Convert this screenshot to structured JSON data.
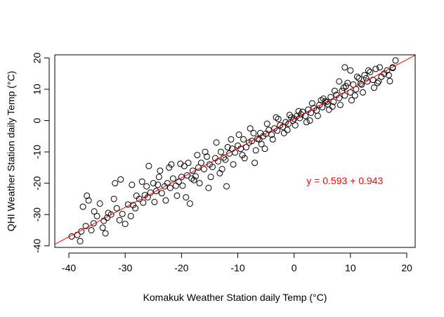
{
  "chart_data": {
    "type": "scatter",
    "title": "",
    "xlabel": "Komakuk Weather Station daily Temp (°C)",
    "ylabel": "QHI Weather Station daily Temp (°C)",
    "xlim": [
      -42.5,
      21.5
    ],
    "ylim": [
      -40.5,
      21.0
    ],
    "x_ticks": [
      -40,
      -30,
      -20,
      -10,
      0,
      10,
      20
    ],
    "y_ticks": [
      -40,
      -30,
      -20,
      -10,
      0,
      10,
      20
    ],
    "x_tick_labels": [
      "-40",
      "-30",
      "-20",
      "-10",
      "0",
      "10",
      "20"
    ],
    "y_tick_labels": [
      "-40",
      "-30",
      "-20",
      "-10",
      "0",
      "10",
      "20"
    ],
    "grid": false,
    "point_color": "#000000",
    "marker": "open-circle",
    "regression": {
      "intercept": 0.593,
      "slope": 0.943,
      "color": "#ff0000",
      "label": "y = 0.593 + 0.943",
      "label_position": [
        2.2,
        -20.3
      ]
    },
    "points": [
      [
        -39.5,
        -37.0
      ],
      [
        -38.5,
        -36.5
      ],
      [
        -37.8,
        -35.4
      ],
      [
        -37.0,
        -33.7
      ],
      [
        -36.5,
        -25.5
      ],
      [
        -35.6,
        -32.8
      ],
      [
        -35.0,
        -30.5
      ],
      [
        -34.5,
        -26.5
      ],
      [
        -33.8,
        -32.0
      ],
      [
        -33.0,
        -29.5
      ],
      [
        -32.5,
        -30.0
      ],
      [
        -31.8,
        -20.0
      ],
      [
        -31.5,
        -28.0
      ],
      [
        -30.5,
        -29.8
      ],
      [
        -30.0,
        -33.0
      ],
      [
        -29.5,
        -26.8
      ],
      [
        -28.6,
        -27.0
      ],
      [
        -28.0,
        -24.0
      ],
      [
        -27.5,
        -25.0
      ],
      [
        -26.8,
        -26.2
      ],
      [
        -26.0,
        -24.5
      ],
      [
        -25.5,
        -23.0
      ],
      [
        -25.0,
        -20.0
      ],
      [
        -24.5,
        -22.5
      ],
      [
        -24.0,
        -18.0
      ],
      [
        -23.5,
        -23.2
      ],
      [
        -23.0,
        -21.0
      ],
      [
        -22.5,
        -20.0
      ],
      [
        -22.0,
        -21.5
      ],
      [
        -21.5,
        -18.5
      ],
      [
        -21.0,
        -20.8
      ],
      [
        -20.5,
        -19.5
      ],
      [
        -20.0,
        -18.0
      ],
      [
        -19.5,
        -14.5
      ],
      [
        -19.0,
        -17.5
      ],
      [
        -18.5,
        -26.5
      ],
      [
        -18.0,
        -16.0
      ],
      [
        -17.5,
        -17.8
      ],
      [
        -17.0,
        -15.0
      ],
      [
        -16.5,
        -13.5
      ],
      [
        -16.0,
        -15.5
      ],
      [
        -15.5,
        -11.5
      ],
      [
        -15.0,
        -14.0
      ],
      [
        -14.5,
        -14.8
      ],
      [
        -14.0,
        -12.0
      ],
      [
        -13.5,
        -13.0
      ],
      [
        -13.0,
        -10.0
      ],
      [
        -12.5,
        -11.8
      ],
      [
        -12.0,
        -21.0
      ],
      [
        -11.5,
        -10.5
      ],
      [
        -11.0,
        -9.0
      ],
      [
        -10.5,
        -10.2
      ],
      [
        -10.0,
        -8.0
      ],
      [
        -9.5,
        -9.0
      ],
      [
        -9.0,
        -6.0
      ],
      [
        -8.5,
        -8.5
      ],
      [
        -8.0,
        -7.0
      ],
      [
        -7.5,
        -6.5
      ],
      [
        -7.0,
        -13.5
      ],
      [
        -6.5,
        -5.8
      ],
      [
        -6.0,
        -4.0
      ],
      [
        -5.5,
        -5.0
      ],
      [
        -5.0,
        -4.2
      ],
      [
        -4.5,
        -3.0
      ],
      [
        -4.0,
        -4.5
      ],
      [
        -3.5,
        -2.5
      ],
      [
        -3.0,
        -3.2
      ],
      [
        -2.5,
        -1.5
      ],
      [
        -2.0,
        -2.0
      ],
      [
        -1.5,
        -0.5
      ],
      [
        -1.0,
        -1.0
      ],
      [
        -0.5,
        1.0
      ],
      [
        0.0,
        0.6
      ],
      [
        0.5,
        1.5
      ],
      [
        1.0,
        0.8
      ],
      [
        1.5,
        2.8
      ],
      [
        2.0,
        1.5
      ],
      [
        2.5,
        3.5
      ],
      [
        3.0,
        2.5
      ],
      [
        3.5,
        4.0
      ],
      [
        4.0,
        3.2
      ],
      [
        4.5,
        5.0
      ],
      [
        5.0,
        4.3
      ],
      [
        5.5,
        6.2
      ],
      [
        6.0,
        5.2
      ],
      [
        6.5,
        7.5
      ],
      [
        7.0,
        6.0
      ],
      [
        7.5,
        8.2
      ],
      [
        8.0,
        7.2
      ],
      [
        8.5,
        9.5
      ],
      [
        9.0,
        8.0
      ],
      [
        9.5,
        12.0
      ],
      [
        10.0,
        9.0
      ],
      [
        10.5,
        11.5
      ],
      [
        11.0,
        10.0
      ],
      [
        11.5,
        13.5
      ],
      [
        12.0,
        11.5
      ],
      [
        12.5,
        14.5
      ],
      [
        13.0,
        12.5
      ],
      [
        13.5,
        15.5
      ],
      [
        14.0,
        13.0
      ],
      [
        14.5,
        16.5
      ],
      [
        15.0,
        12.5
      ],
      [
        15.5,
        14.0
      ],
      [
        16.0,
        15.0
      ],
      [
        16.5,
        16.0
      ],
      [
        17.0,
        12.6
      ],
      [
        17.5,
        16.8
      ],
      [
        18.0,
        19.2
      ],
      [
        -36.0,
        -35.0
      ],
      [
        -34.0,
        -34.2
      ],
      [
        -32.0,
        -25.0
      ],
      [
        -29.0,
        -30.5
      ],
      [
        -27.0,
        -19.5
      ],
      [
        -26.5,
        -23.8
      ],
      [
        -25.8,
        -14.5
      ],
      [
        -24.8,
        -26.0
      ],
      [
        -23.8,
        -16.0
      ],
      [
        -22.8,
        -25.5
      ],
      [
        -21.8,
        -14.0
      ],
      [
        -20.8,
        -24.0
      ],
      [
        -19.8,
        -20.8
      ],
      [
        -18.8,
        -13.5
      ],
      [
        -17.8,
        -19.0
      ],
      [
        -16.8,
        -20.0
      ],
      [
        -15.8,
        -10.0
      ],
      [
        -14.8,
        -18.0
      ],
      [
        -13.8,
        -7.0
      ],
      [
        -12.8,
        -15.5
      ],
      [
        -11.8,
        -8.5
      ],
      [
        -10.8,
        -14.0
      ],
      [
        -9.8,
        -4.5
      ],
      [
        -8.8,
        -12.0
      ],
      [
        -7.8,
        -2.5
      ],
      [
        -6.8,
        -9.5
      ],
      [
        -5.8,
        -7.5
      ],
      [
        -4.8,
        -1.0
      ],
      [
        -3.8,
        -6.0
      ],
      [
        -2.8,
        0.5
      ],
      [
        -1.8,
        -4.0
      ],
      [
        -0.8,
        1.8
      ],
      [
        0.2,
        -1.5
      ],
      [
        1.2,
        2.0
      ],
      [
        2.2,
        -0.5
      ],
      [
        3.2,
        5.5
      ],
      [
        4.2,
        1.5
      ],
      [
        5.2,
        7.0
      ],
      [
        6.2,
        3.5
      ],
      [
        7.2,
        9.5
      ],
      [
        8.2,
        5.0
      ],
      [
        9.2,
        11.0
      ],
      [
        10.2,
        6.5
      ],
      [
        11.2,
        14.0
      ],
      [
        12.2,
        9.0
      ],
      [
        13.2,
        16.0
      ],
      [
        14.2,
        10.5
      ],
      [
        15.2,
        17.0
      ],
      [
        9.0,
        17.0
      ],
      [
        10.0,
        16.0
      ],
      [
        8.0,
        12.5
      ],
      [
        -30.8,
        -18.8
      ],
      [
        -28.8,
        -20.5
      ],
      [
        -26.2,
        -21.0
      ],
      [
        -22.2,
        -15.0
      ],
      [
        -20.2,
        -13.8
      ],
      [
        -19.2,
        -24.5
      ],
      [
        -17.2,
        -11.0
      ],
      [
        -15.2,
        -21.5
      ],
      [
        -13.2,
        -16.8
      ],
      [
        -11.2,
        -6.0
      ],
      [
        -9.2,
        -11.0
      ],
      [
        -7.2,
        -4.0
      ],
      [
        -5.2,
        -9.0
      ],
      [
        -3.2,
        1.0
      ],
      [
        -1.2,
        -3.0
      ],
      [
        0.8,
        3.0
      ],
      [
        2.8,
        0.0
      ],
      [
        4.8,
        6.5
      ],
      [
        6.8,
        4.5
      ],
      [
        8.8,
        10.5
      ],
      [
        10.8,
        8.0
      ],
      [
        12.8,
        13.5
      ],
      [
        14.8,
        12.0
      ],
      [
        16.8,
        14.5
      ],
      [
        -38.0,
        -38.5
      ],
      [
        -35.5,
        -29.0
      ],
      [
        -33.5,
        -36.0
      ],
      [
        -31.0,
        -31.8
      ],
      [
        -28.2,
        -28.0
      ],
      [
        -24.2,
        -20.5
      ],
      [
        -18.2,
        -18.5
      ],
      [
        -12.2,
        -12.5
      ],
      [
        -6.2,
        -6.0
      ],
      [
        -0.2,
        0.0
      ],
      [
        5.8,
        6.0
      ],
      [
        11.8,
        11.8
      ],
      [
        17.5,
        17.0
      ],
      [
        -37.5,
        -27.5
      ],
      [
        -36.8,
        -24.0
      ],
      [
        -33.2,
        -31.0
      ]
    ]
  }
}
